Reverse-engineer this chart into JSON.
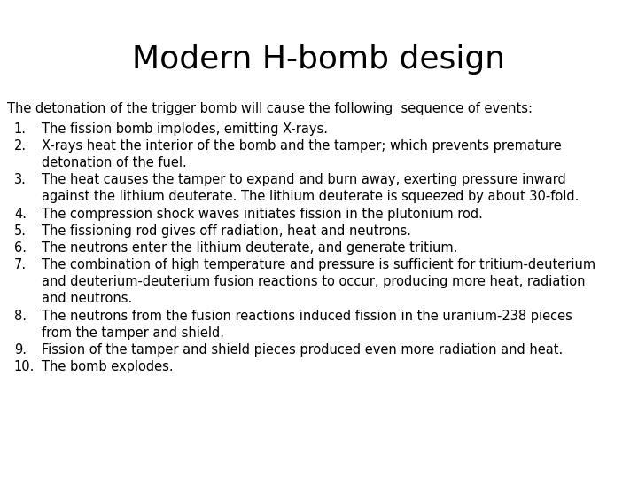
{
  "title": "Modern H-bomb design",
  "subtitle": "The detonation of the trigger bomb will cause the following  sequence of events:",
  "items": [
    [
      "1.",
      "The fission bomb implodes, emitting X-rays."
    ],
    [
      "2.",
      "X-rays heat the interior of the bomb and the tamper; which prevents premature",
      "detonation of the fuel."
    ],
    [
      "3.",
      "The heat causes the tamper to expand and burn away, exerting pressure inward",
      "against the lithium deuterate. The lithium deuterate is squeezed by about 30-fold."
    ],
    [
      "4.",
      "The compression shock waves initiates fission in the plutonium rod."
    ],
    [
      "5.",
      "The fissioning rod gives off radiation, heat and neutrons."
    ],
    [
      "6.",
      "The neutrons enter the lithium deuterate, and generate tritium."
    ],
    [
      "7.",
      "The combination of high temperature and pressure is sufficient for tritium-deuterium",
      "and deuterium-deuterium fusion reactions to occur, producing more heat, radiation",
      "and neutrons."
    ],
    [
      "8.",
      "The neutrons from the fusion reactions induced fission in the uranium-238 pieces",
      "from the tamper and shield."
    ],
    [
      "9.",
      "Fission of the tamper and shield pieces produced even more radiation and heat."
    ],
    [
      "10.",
      "The bomb explodes."
    ]
  ],
  "background_color": "#ffffff",
  "text_color": "#000000",
  "title_fontsize": 26,
  "body_fontsize": 10.5,
  "subtitle_fontsize": 10.5,
  "font_family": "DejaVu Sans"
}
